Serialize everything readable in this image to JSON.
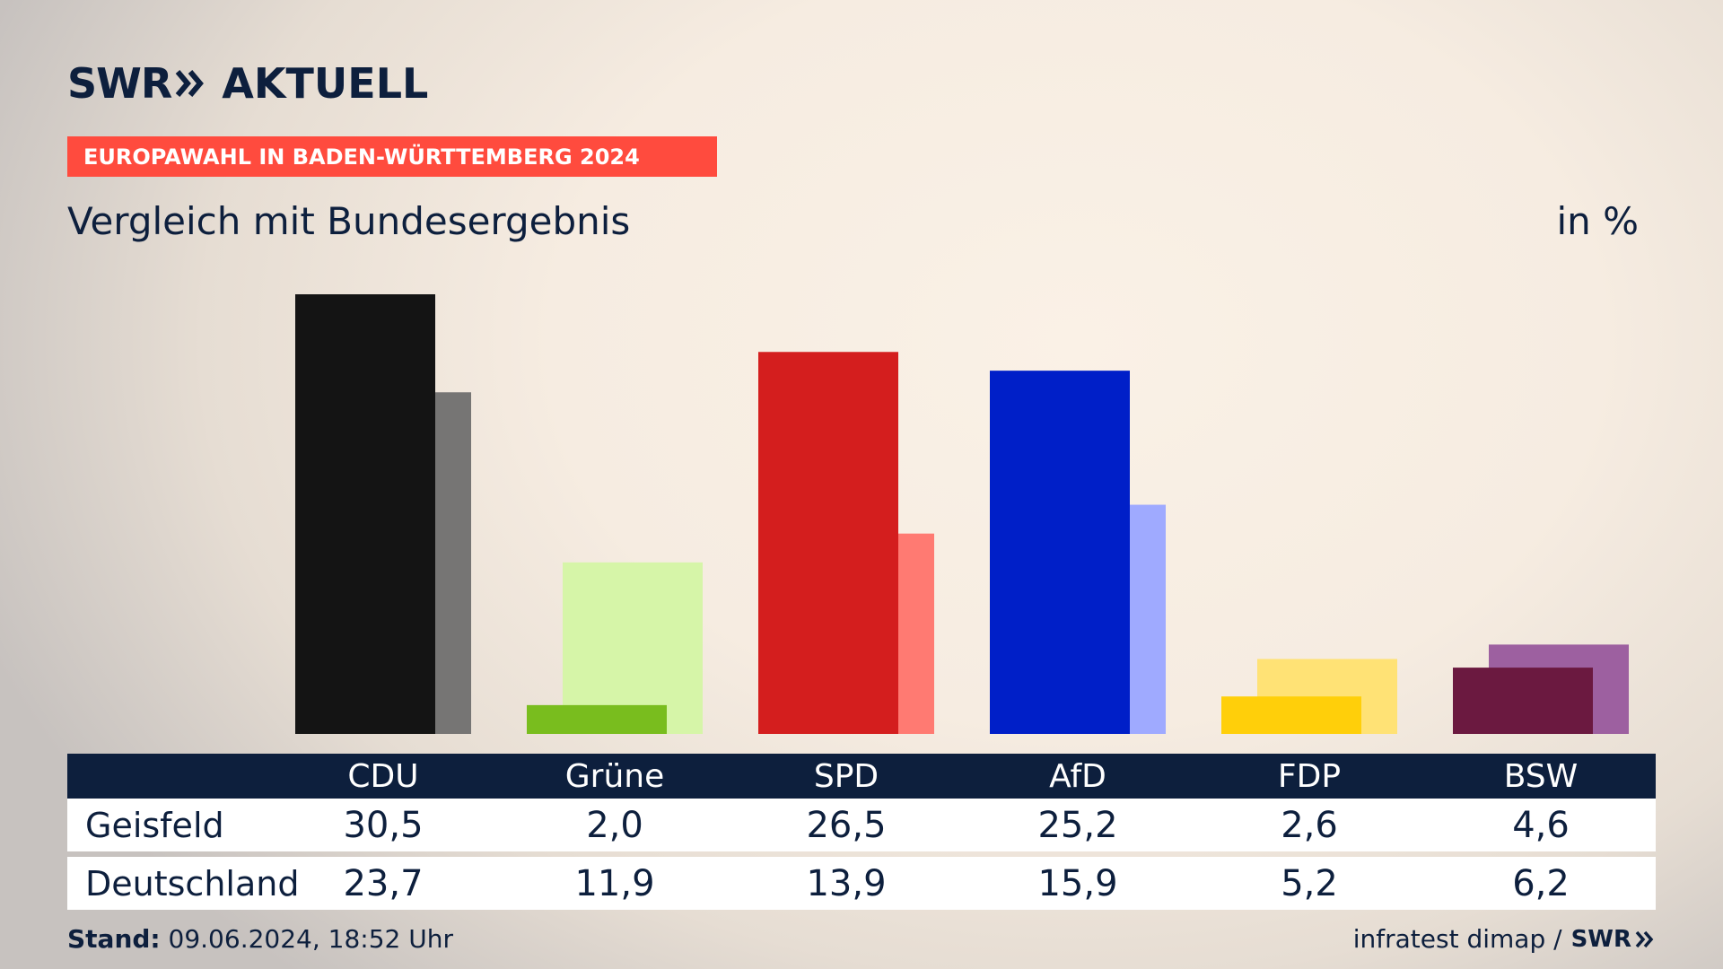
{
  "header": {
    "logo_part1": "SWR",
    "logo_part2": "AKTUELL",
    "banner": "EUROPAWAHL IN BADEN-WÜRTTEMBERG 2024",
    "subtitle": "Vergleich mit Bundesergebnis",
    "unit": "in %"
  },
  "colors": {
    "banner": "#ff4b3e",
    "navy": "#0d1f3d"
  },
  "chart_data": {
    "type": "bar",
    "categories": [
      "CDU",
      "Grüne",
      "SPD",
      "AfD",
      "FDP",
      "BSW"
    ],
    "series": [
      {
        "name": "Geisfeld",
        "values": [
          30.5,
          2.0,
          26.5,
          25.2,
          2.6,
          4.6
        ],
        "display": [
          "30,5",
          "2,0",
          "26,5",
          "25,2",
          "2,6",
          "4,6"
        ],
        "colors": [
          "#141414",
          "#79bd1e",
          "#d41e1e",
          "#001fc8",
          "#ffcf0a",
          "#6b1940"
        ]
      },
      {
        "name": "Deutschland",
        "values": [
          23.7,
          11.9,
          13.9,
          15.9,
          5.2,
          6.2
        ],
        "display": [
          "23,7",
          "11,9",
          "13,9",
          "15,9",
          "5,2",
          "6,2"
        ],
        "colors": [
          "#767574",
          "#d6f5a8",
          "#ff7a72",
          "#9faaff",
          "#ffe275",
          "#9d60a0"
        ]
      }
    ],
    "ylim": [
      0,
      30.5
    ]
  },
  "footer": {
    "stand_label": "Stand:",
    "stand_value": "09.06.2024, 18:52 Uhr",
    "source": "infratest dimap /",
    "source_logo": "SWR"
  }
}
